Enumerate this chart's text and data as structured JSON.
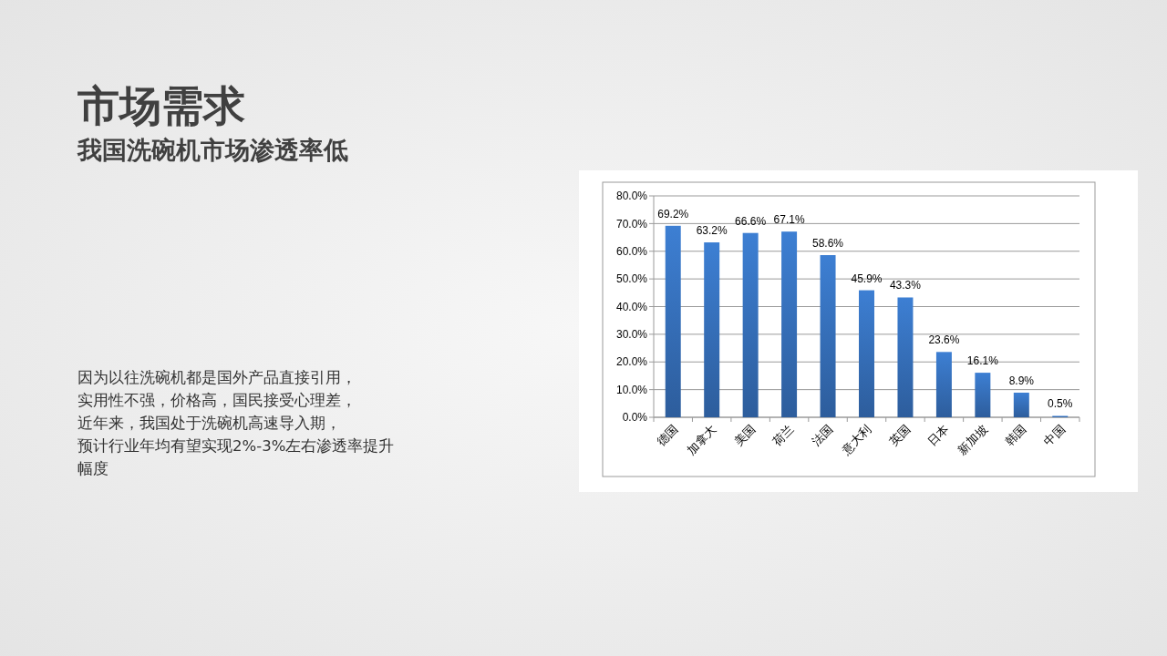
{
  "chart_data": {
    "type": "bar",
    "title": "市场需求",
    "subtitle": "我国洗碗机市场渗透率低",
    "annotations": [
      "因为以往洗碗机都是国外产品直接引用，实用性不强，价格高，国民接受心理差，近年来，我国处于洗碗机高速导入期，预计行业年均有望实现2%-3%左右渗透率提升幅度"
    ],
    "categories": [
      "德国",
      "加拿大",
      "美国",
      "荷兰",
      "法国",
      "意大利",
      "英国",
      "日本",
      "新加坡",
      "韩国",
      "中国"
    ],
    "values": [
      69.2,
      63.2,
      66.6,
      67.1,
      58.6,
      45.9,
      43.3,
      23.6,
      16.1,
      8.9,
      0.5
    ],
    "value_labels": [
      "69.2%",
      "63.2%",
      "66.6%",
      "67.1%",
      "58.6%",
      "45.9%",
      "43.3%",
      "23.6%",
      "16.1%",
      "8.9%",
      "0.5%"
    ],
    "color": "#3a78c8",
    "ylim": [
      0,
      80
    ],
    "yticks": [
      {
        "value": 0,
        "label": "0.0%"
      },
      {
        "value": 10,
        "label": "10.0%"
      },
      {
        "value": 20,
        "label": "20.0%"
      },
      {
        "value": 30,
        "label": "30.0%"
      },
      {
        "value": 40,
        "label": "40.0%"
      },
      {
        "value": 50,
        "label": "50.0%"
      },
      {
        "value": 60,
        "label": "60.0%"
      },
      {
        "value": 70,
        "label": "70.0%"
      },
      {
        "value": 80,
        "label": "80.0%"
      }
    ],
    "grid": "y"
  }
}
